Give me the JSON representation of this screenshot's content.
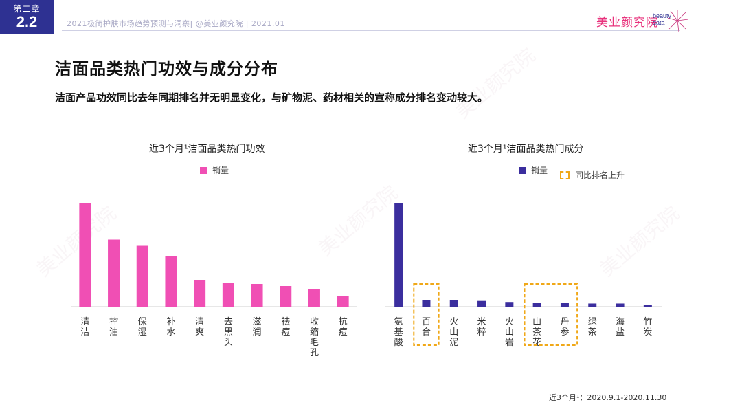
{
  "header": {
    "chapter_label": "第二章",
    "chapter_number": "2.2",
    "report_subtitle": "2021极简护肤市场趋势预测与洞察| @美业颜究院 | 2021.01",
    "brand_name": "美业颜究院",
    "brand_en_1": "beauty",
    "brand_en_2": "data"
  },
  "page": {
    "title": "洁面品类热门功效与成分分布",
    "subtitle": "洁面产品功效同比去年同期排名并无明显变化，与矿物泥、药材相关的宣称成分排名变动较大。"
  },
  "footnote": "近3个月¹：2020.9.1-2020.11.30",
  "colors": {
    "efficacy": "#f04fb4",
    "ingredient": "#3b2e9e",
    "highlight": "#f0a818",
    "brand_navy": "#2e3192"
  },
  "chart_data": [
    {
      "type": "bar",
      "title": "近3个月¹洁面品类热门功效",
      "legend": "销量",
      "categories": [
        "清洁",
        "控油",
        "保湿",
        "补水",
        "清爽",
        "去黑头",
        "滋润",
        "祛痘",
        "收缩毛孔",
        "抗痘"
      ],
      "values": [
        100,
        65,
        59,
        49,
        26,
        23,
        22,
        20,
        17,
        10
      ],
      "ylim": [
        0,
        100
      ],
      "grid": false
    },
    {
      "type": "bar",
      "title": "近3个月¹洁面品类热门成分",
      "legend": "销量",
      "highlight_legend": "同比排名上升",
      "categories": [
        "氨基酸",
        "百合",
        "火山泥",
        "米粹",
        "火山岩",
        "山茶花",
        "丹参",
        "绿茶",
        "海盐",
        "竹炭"
      ],
      "values": [
        100,
        6,
        6,
        5.5,
        4.5,
        3.5,
        3.5,
        3,
        3,
        1.5
      ],
      "highlighted": [
        "百合",
        "山茶花",
        "丹参"
      ],
      "ylim": [
        0,
        100
      ],
      "grid": false
    }
  ]
}
